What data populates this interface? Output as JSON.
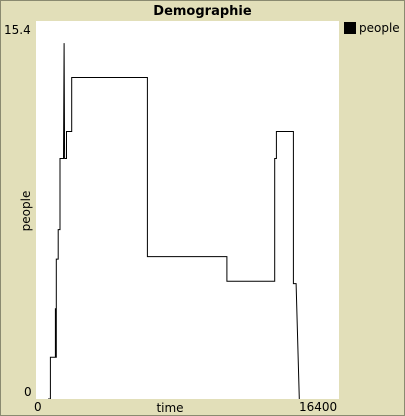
{
  "chart_data": {
    "type": "line",
    "title": "Demographie",
    "xlabel": "time",
    "ylabel": "people",
    "xlim": [
      0,
      16400
    ],
    "ylim": [
      0,
      15.4
    ],
    "x_tick_labels": [
      "0",
      "16400"
    ],
    "y_tick_labels": [
      "0",
      "15.4"
    ],
    "legend": {
      "placement": "right",
      "entries": [
        "people"
      ]
    },
    "series": [
      {
        "name": "people",
        "color": "#000000",
        "points": [
          [
            650,
            0
          ],
          [
            780,
            0
          ],
          [
            780,
            1.7
          ],
          [
            1050,
            1.7
          ],
          [
            1050,
            3.7
          ],
          [
            1070,
            1.7
          ],
          [
            1100,
            1.7
          ],
          [
            1100,
            5.7
          ],
          [
            1200,
            5.7
          ],
          [
            1200,
            6.9
          ],
          [
            1300,
            6.9
          ],
          [
            1300,
            9.8
          ],
          [
            1490,
            9.8
          ],
          [
            1520,
            14.5
          ],
          [
            1550,
            9.8
          ],
          [
            1650,
            9.8
          ],
          [
            1650,
            10.9
          ],
          [
            1930,
            10.9
          ],
          [
            1930,
            13.1
          ],
          [
            6030,
            13.1
          ],
          [
            6030,
            5.8
          ],
          [
            10330,
            5.8
          ],
          [
            10330,
            4.8
          ],
          [
            12920,
            4.8
          ],
          [
            12920,
            9.8
          ],
          [
            13010,
            9.8
          ],
          [
            13010,
            10.9
          ],
          [
            13930,
            10.9
          ],
          [
            13930,
            4.7
          ],
          [
            14080,
            4.7
          ],
          [
            14250,
            0
          ]
        ]
      }
    ]
  }
}
